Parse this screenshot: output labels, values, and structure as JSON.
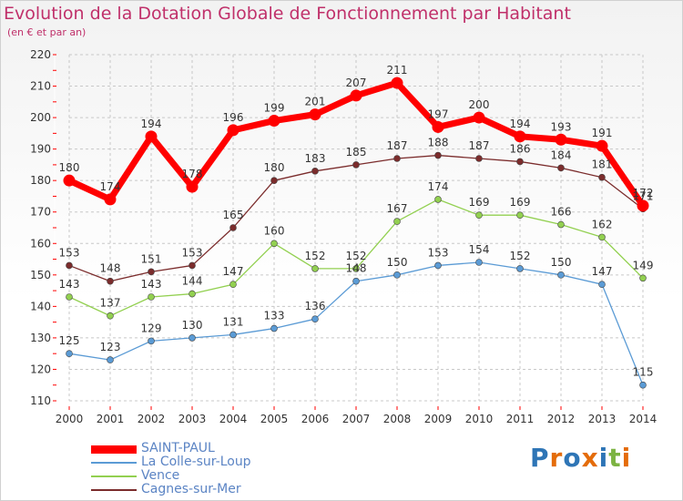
{
  "title": "Evolution de la Dotation Globale de Fonctionnement par Habitant",
  "subtitle": "(en € et par an)",
  "logo_text": "Proxiti",
  "chart_data": {
    "type": "line",
    "title": "Evolution de la Dotation Globale de Fonctionnement par Habitant",
    "ylabel": "(en € et par an)",
    "xlabel": "",
    "x": [
      "2000",
      "2001",
      "2002",
      "2003",
      "2004",
      "2005",
      "2006",
      "2007",
      "2008",
      "2009",
      "2010",
      "2011",
      "2012",
      "2013",
      "2014"
    ],
    "ylim": [
      110,
      220
    ],
    "yticks": [
      110,
      120,
      130,
      140,
      150,
      160,
      170,
      180,
      190,
      200,
      210,
      220
    ],
    "grid": true,
    "legend_position": "bottom-left",
    "series": [
      {
        "name": "SAINT-PAUL",
        "color": "#ff0000",
        "values": [
          180,
          174,
          194,
          178,
          196,
          199,
          201,
          207,
          211,
          197,
          200,
          194,
          193,
          191,
          172
        ]
      },
      {
        "name": "La Colle-sur-Loup",
        "color": "#5b9bd5",
        "values": [
          125,
          123,
          129,
          130,
          131,
          133,
          136,
          148,
          150,
          153,
          154,
          152,
          150,
          147,
          115
        ]
      },
      {
        "name": "Vence",
        "color": "#92d050",
        "values": [
          143,
          137,
          143,
          144,
          147,
          160,
          152,
          152,
          167,
          174,
          169,
          169,
          166,
          162,
          149
        ]
      },
      {
        "name": "Cagnes-sur-Mer",
        "color": "#7b2c2c",
        "values": [
          153,
          148,
          151,
          153,
          165,
          180,
          183,
          185,
          187,
          188,
          187,
          186,
          184,
          181,
          171
        ]
      }
    ]
  }
}
